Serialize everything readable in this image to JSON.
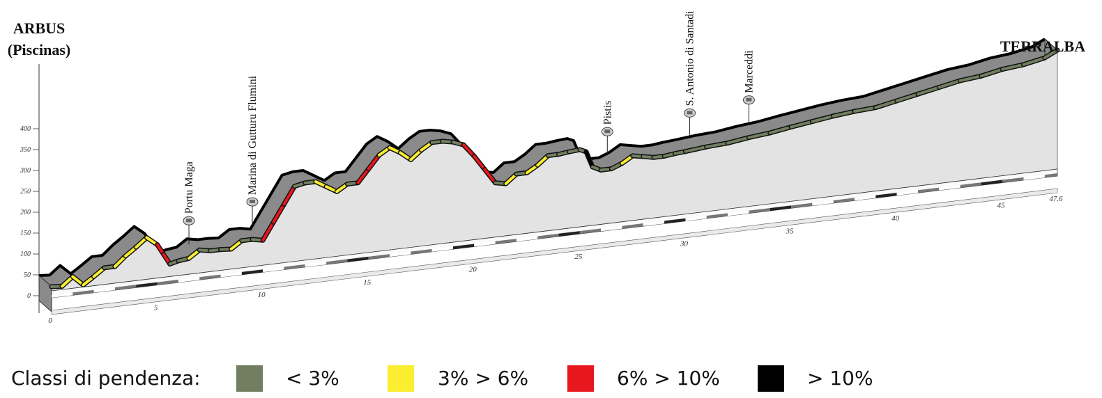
{
  "chart_data": {
    "type": "area",
    "title": "",
    "start_label": [
      "ARBUS",
      "(Piscinas)"
    ],
    "end_label": "TERRALBA",
    "xlim": [
      0,
      47.6
    ],
    "ylim": [
      0,
      400
    ],
    "x_ticks": [
      "0",
      "5",
      "10",
      "15",
      "20",
      "25",
      "30",
      "35",
      "40",
      "45",
      "47.6"
    ],
    "y_ticks": [
      "0",
      "50",
      "100",
      "150",
      "200",
      "250",
      "300",
      "350",
      "400"
    ],
    "series": [
      {
        "x": [
          0,
          0.5,
          1,
          1.5,
          2,
          2.5,
          3,
          3.5,
          4,
          4.5,
          5,
          5.3,
          5.6,
          6,
          6.5,
          7,
          7.5,
          8,
          8.5,
          9,
          9.5,
          10,
          10.5,
          11,
          11.5,
          12,
          12.5,
          13,
          13.5,
          14,
          14.5,
          15,
          15.5,
          16,
          16.5,
          17,
          17.5,
          18,
          18.5,
          19,
          19.5,
          20,
          20.5,
          21,
          21.5,
          22,
          22.5,
          23,
          23.5,
          24,
          24.5,
          25,
          25.3,
          25.6,
          26,
          26.5,
          27,
          27.5,
          28,
          28.5,
          29,
          29.5,
          30,
          31,
          32,
          33,
          34,
          35,
          36,
          37,
          38,
          39,
          40,
          41,
          42,
          43,
          44,
          45,
          46,
          47,
          47.6
        ],
        "elevation": [
          10,
          8,
          28,
          5,
          22,
          40,
          40,
          62,
          80,
          100,
          80,
          55,
          30,
          35,
          38,
          55,
          50,
          50,
          48,
          65,
          65,
          60,
          100,
          140,
          180,
          185,
          185,
          170,
          155,
          170,
          170,
          200,
          230,
          245,
          230,
          210,
          230,
          245,
          245,
          240,
          230,
          200,
          165,
          130,
          125,
          145,
          145,
          160,
          180,
          180,
          183,
          185,
          178,
          140,
          130,
          130,
          140,
          155,
          150,
          145,
          145,
          148,
          150,
          155,
          158,
          165,
          170,
          178,
          185,
          192,
          197,
          200,
          210,
          220,
          230,
          240,
          245,
          255,
          260,
          270,
          285
        ]
      }
    ],
    "slope_classes": [
      {
        "label": "< 3%",
        "color": "#717f60"
      },
      {
        "label": "3% > 6%",
        "color": "#fbed30"
      },
      {
        "label": "6% > 10%",
        "color": "#e8161d"
      },
      {
        "label": "> 10%",
        "color": "#000000"
      }
    ],
    "waypoints": [
      {
        "name": "Portu Maga",
        "km": 6.5
      },
      {
        "name": "Marina di Gutturu Flumini",
        "km": 9.5
      },
      {
        "name": "Pistis",
        "km": 26.3
      },
      {
        "name": "S. Antonio di Santadi",
        "km": 30.2
      },
      {
        "name": "Marceddi",
        "km": 33.0
      }
    ]
  },
  "legend": {
    "title": "Classi di pendenza:",
    "items": [
      {
        "label": "< 3%",
        "color": "#717f60"
      },
      {
        "label": "3% > 6%",
        "color": "#fbed30"
      },
      {
        "label": "6% > 10%",
        "color": "#e8161d"
      },
      {
        "label": "> 10%",
        "color": "#000000"
      }
    ]
  }
}
